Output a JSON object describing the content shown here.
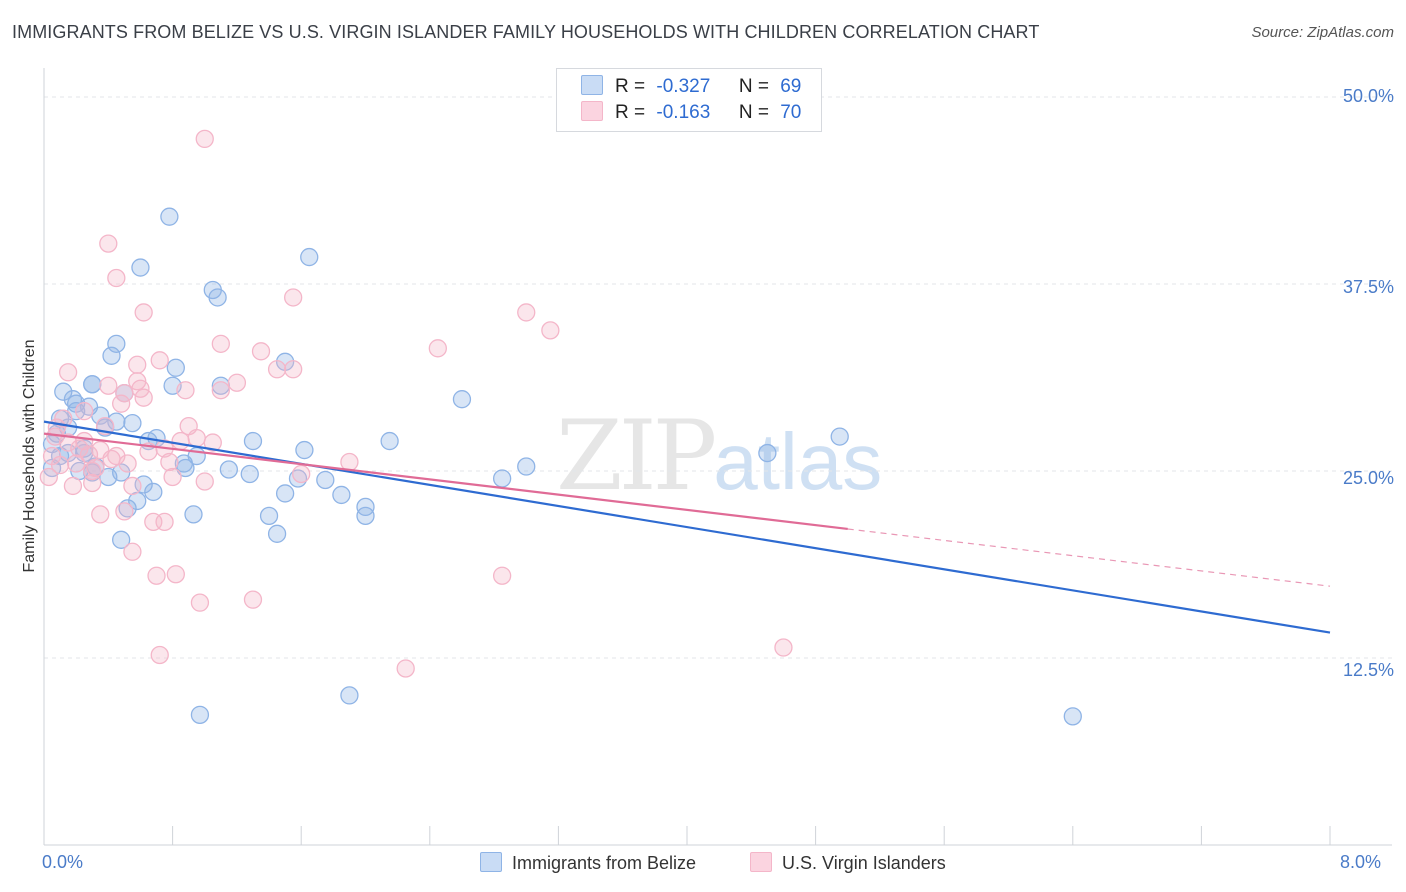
{
  "chart_data": {
    "type": "scatter",
    "title": "IMMIGRANTS FROM BELIZE VS U.S. VIRGIN ISLANDER FAMILY HOUSEHOLDS WITH CHILDREN CORRELATION CHART",
    "source": "Source: ZipAtlas.com",
    "xlabel": "",
    "ylabel": "Family Households with Children",
    "xlim": [
      0,
      8
    ],
    "ylim": [
      0,
      50
    ],
    "x_tick_labels": [
      "0.0%",
      "8.0%"
    ],
    "y_ticks": [
      {
        "value": 50,
        "label": "50.0%"
      },
      {
        "value": 37.5,
        "label": "37.5%"
      },
      {
        "value": 25,
        "label": "25.0%"
      },
      {
        "value": 12.5,
        "label": "12.5%"
      }
    ],
    "watermark": {
      "zip": "ZIP",
      "atlas": "atlas"
    },
    "legend": [
      {
        "r_label": "R =",
        "r_value": "-0.327",
        "n_label": "N =",
        "n_value": "69"
      },
      {
        "r_label": "R =",
        "r_value": "-0.163",
        "n_label": "N =",
        "n_value": "70"
      }
    ],
    "series": [
      {
        "name": "Immigrants from Belize",
        "color": "#8fb4e6",
        "line_color": "#2e6bd1",
        "trend": {
          "x0": 0.0,
          "y0": 28.3,
          "x1": 8.0,
          "y1": 14.2,
          "dashed_from": null
        },
        "points": [
          [
            0.05,
            25.2
          ],
          [
            0.05,
            26.8
          ],
          [
            0.08,
            27.5
          ],
          [
            0.1,
            28.5
          ],
          [
            0.1,
            26.0
          ],
          [
            0.12,
            30.3
          ],
          [
            0.15,
            26.2
          ],
          [
            0.15,
            27.9
          ],
          [
            0.18,
            29.8
          ],
          [
            0.2,
            29.0
          ],
          [
            0.22,
            25.0
          ],
          [
            0.25,
            26.5
          ],
          [
            0.25,
            26.2
          ],
          [
            0.28,
            29.3
          ],
          [
            0.3,
            30.8
          ],
          [
            0.3,
            30.8
          ],
          [
            0.32,
            25.3
          ],
          [
            0.35,
            28.7
          ],
          [
            0.38,
            27.9
          ],
          [
            0.4,
            24.6
          ],
          [
            0.42,
            32.7
          ],
          [
            0.45,
            33.5
          ],
          [
            0.48,
            24.9
          ],
          [
            0.5,
            30.2
          ],
          [
            0.52,
            22.5
          ],
          [
            0.55,
            28.2
          ],
          [
            0.58,
            23.0
          ],
          [
            0.6,
            38.6
          ],
          [
            0.62,
            24.1
          ],
          [
            0.68,
            23.6
          ],
          [
            0.7,
            27.2
          ],
          [
            0.78,
            42.0
          ],
          [
            0.8,
            30.7
          ],
          [
            0.82,
            31.9
          ],
          [
            0.87,
            25.5
          ],
          [
            0.88,
            25.2
          ],
          [
            0.93,
            22.1
          ],
          [
            0.95,
            26.0
          ],
          [
            0.97,
            8.7
          ],
          [
            1.05,
            37.1
          ],
          [
            1.08,
            36.6
          ],
          [
            1.15,
            25.1
          ],
          [
            1.28,
            24.8
          ],
          [
            1.3,
            27.0
          ],
          [
            1.4,
            22.0
          ],
          [
            1.45,
            20.8
          ],
          [
            1.5,
            23.5
          ],
          [
            1.58,
            24.5
          ],
          [
            1.62,
            26.4
          ],
          [
            1.65,
            39.3
          ],
          [
            1.75,
            24.4
          ],
          [
            1.85,
            23.4
          ],
          [
            1.9,
            10.0
          ],
          [
            2.0,
            22.0
          ],
          [
            2.15,
            27.0
          ],
          [
            2.6,
            29.8
          ],
          [
            0.2,
            29.5
          ],
          [
            0.3,
            24.9
          ],
          [
            0.45,
            28.3
          ],
          [
            0.65,
            27.0
          ],
          [
            1.1,
            30.7
          ],
          [
            1.5,
            32.3
          ],
          [
            2.0,
            22.6
          ],
          [
            2.85,
            24.5
          ],
          [
            3.0,
            25.3
          ],
          [
            4.5,
            26.2
          ],
          [
            4.95,
            27.3
          ],
          [
            6.4,
            8.6
          ],
          [
            0.48,
            20.4
          ]
        ]
      },
      {
        "name": "U.S. Virgin Islanders",
        "color": "#f4b6c9",
        "line_color": "#e06b96",
        "trend": {
          "x0": 0.0,
          "y0": 27.5,
          "x1": 8.0,
          "y1": 17.3,
          "dashed_from": 5.0
        },
        "points": [
          [
            0.03,
            24.6
          ],
          [
            0.05,
            26.0
          ],
          [
            0.07,
            27.3
          ],
          [
            0.08,
            27.9
          ],
          [
            0.1,
            25.4
          ],
          [
            0.12,
            28.5
          ],
          [
            0.15,
            26.9
          ],
          [
            0.15,
            31.6
          ],
          [
            0.18,
            24.0
          ],
          [
            0.2,
            25.5
          ],
          [
            0.22,
            26.5
          ],
          [
            0.25,
            29.0
          ],
          [
            0.28,
            26.1
          ],
          [
            0.3,
            24.2
          ],
          [
            0.32,
            25.2
          ],
          [
            0.35,
            22.1
          ],
          [
            0.38,
            28.0
          ],
          [
            0.4,
            30.7
          ],
          [
            0.42,
            25.8
          ],
          [
            0.45,
            26.0
          ],
          [
            0.48,
            29.5
          ],
          [
            0.5,
            30.2
          ],
          [
            0.52,
            25.5
          ],
          [
            0.55,
            24.0
          ],
          [
            0.58,
            31.0
          ],
          [
            0.6,
            30.5
          ],
          [
            0.62,
            35.6
          ],
          [
            0.65,
            26.3
          ],
          [
            0.68,
            21.6
          ],
          [
            0.7,
            18.0
          ],
          [
            0.72,
            12.7
          ],
          [
            0.75,
            26.5
          ],
          [
            0.78,
            25.6
          ],
          [
            0.8,
            24.6
          ],
          [
            0.82,
            18.1
          ],
          [
            0.85,
            27.0
          ],
          [
            0.88,
            30.4
          ],
          [
            0.9,
            28.0
          ],
          [
            0.95,
            27.2
          ],
          [
            0.97,
            16.2
          ],
          [
            1.0,
            47.2
          ],
          [
            1.05,
            26.9
          ],
          [
            1.1,
            30.4
          ],
          [
            1.2,
            30.9
          ],
          [
            1.35,
            33.0
          ],
          [
            1.45,
            31.8
          ],
          [
            1.55,
            36.6
          ],
          [
            1.6,
            24.8
          ],
          [
            1.9,
            25.6
          ],
          [
            2.25,
            11.8
          ],
          [
            2.45,
            33.2
          ],
          [
            2.85,
            18.0
          ],
          [
            3.0,
            35.6
          ],
          [
            4.6,
            13.2
          ],
          [
            0.4,
            40.2
          ],
          [
            0.45,
            37.9
          ],
          [
            0.62,
            29.9
          ],
          [
            0.5,
            22.3
          ],
          [
            0.55,
            19.6
          ],
          [
            0.72,
            32.4
          ],
          [
            1.0,
            24.3
          ],
          [
            1.1,
            33.5
          ],
          [
            1.3,
            16.4
          ],
          [
            1.55,
            31.8
          ],
          [
            3.15,
            34.4
          ],
          [
            0.3,
            25.0
          ],
          [
            0.25,
            27.0
          ],
          [
            0.35,
            26.4
          ],
          [
            0.58,
            32.1
          ],
          [
            0.75,
            21.6
          ]
        ]
      }
    ]
  }
}
